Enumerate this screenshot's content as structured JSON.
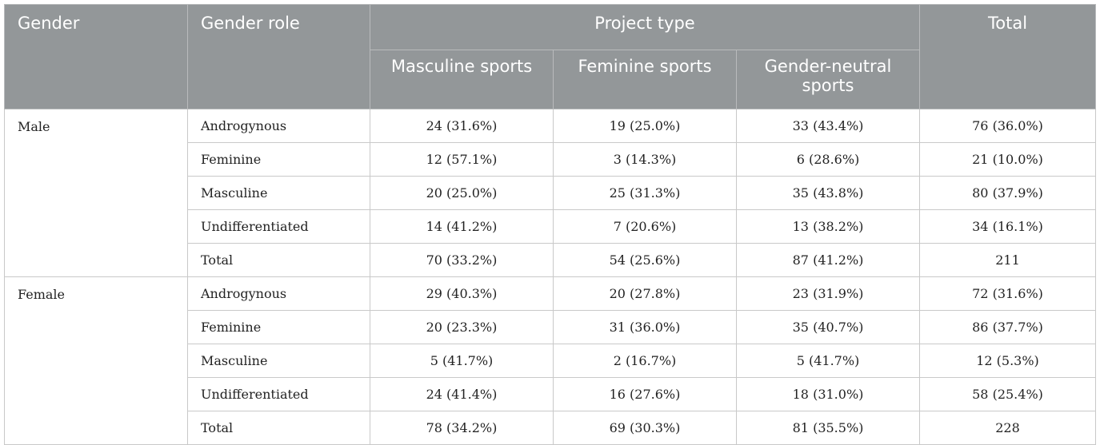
{
  "header": {
    "gender": "Gender",
    "gender_role": "Gender role",
    "project_type": "Project type",
    "total": "Total",
    "sub": [
      "Masculine sports",
      "Feminine sports",
      "Gender-neutral sports"
    ]
  },
  "groups": [
    {
      "gender": "Male",
      "rows": [
        {
          "role": "Androgynous",
          "masc": "24 (31.6%)",
          "fem": "19 (25.0%)",
          "neutral": "33 (43.4%)",
          "total": "76 (36.0%)"
        },
        {
          "role": "Feminine",
          "masc": "12 (57.1%)",
          "fem": "3 (14.3%)",
          "neutral": "6 (28.6%)",
          "total": "21 (10.0%)"
        },
        {
          "role": "Masculine",
          "masc": "20 (25.0%)",
          "fem": "25 (31.3%)",
          "neutral": "35 (43.8%)",
          "total": "80 (37.9%)"
        },
        {
          "role": "Undifferentiated",
          "masc": "14 (41.2%)",
          "fem": "7 (20.6%)",
          "neutral": "13 (38.2%)",
          "total": "34 (16.1%)"
        },
        {
          "role": "Total",
          "masc": "70 (33.2%)",
          "fem": "54 (25.6%)",
          "neutral": "87 (41.2%)",
          "total": "211"
        }
      ]
    },
    {
      "gender": "Female",
      "rows": [
        {
          "role": "Androgynous",
          "masc": "29 (40.3%)",
          "fem": "20 (27.8%)",
          "neutral": "23 (31.9%)",
          "total": "72 (31.6%)"
        },
        {
          "role": "Feminine",
          "masc": "20 (23.3%)",
          "fem": "31 (36.0%)",
          "neutral": "35 (40.7%)",
          "total": "86 (37.7%)"
        },
        {
          "role": "Masculine",
          "masc": "5 (41.7%)",
          "fem": "2 (16.7%)",
          "neutral": "5 (41.7%)",
          "total": "12 (5.3%)"
        },
        {
          "role": "Undifferentiated",
          "masc": "24 (41.4%)",
          "fem": "16 (27.6%)",
          "neutral": "18 (31.0%)",
          "total": "58 (25.4%)"
        },
        {
          "role": "Total",
          "masc": "78 (34.2%)",
          "fem": "69 (30.3%)",
          "neutral": "81 (35.5%)",
          "total": "228"
        }
      ]
    }
  ]
}
